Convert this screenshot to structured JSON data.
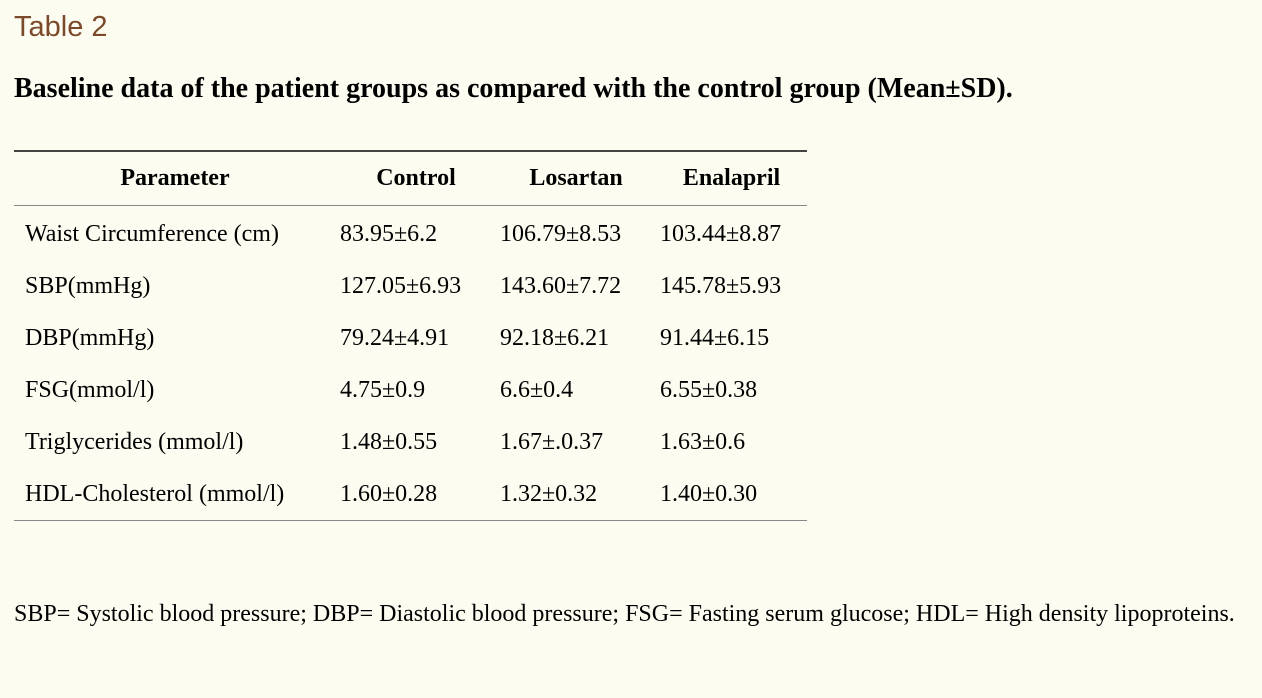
{
  "table_label": "Table 2",
  "caption": "Baseline data of the patient groups as compared with the control group (Mean±SD).",
  "table": {
    "headers": [
      "Parameter",
      "Control",
      "Losartan",
      "Enalapril"
    ],
    "rows": [
      [
        "Waist Circumference (cm)",
        "83.95±6.2",
        "106.79±8.53",
        "103.44±8.87"
      ],
      [
        "SBP(mmHg)",
        "127.05±6.93",
        "143.60±7.72",
        "145.78±5.93"
      ],
      [
        "DBP(mmHg)",
        "79.24±4.91",
        "92.18±6.21",
        "91.44±6.15"
      ],
      [
        "FSG(mmol/l)",
        "4.75±0.9",
        "6.6±0.4",
        "6.55±0.38"
      ],
      [
        "Triglycerides (mmol/l)",
        "1.48±0.55",
        "1.67±.0.37",
        "1.63±0.6"
      ],
      [
        "HDL-Cholesterol (mmol/l)",
        "1.60±0.28",
        "1.32±0.32",
        "1.40±0.30"
      ]
    ]
  },
  "footnote": "SBP= Systolic blood pressure; DBP= Diastolic blood pressure; FSG= Fasting serum glucose; HDL= High density lipoproteins."
}
